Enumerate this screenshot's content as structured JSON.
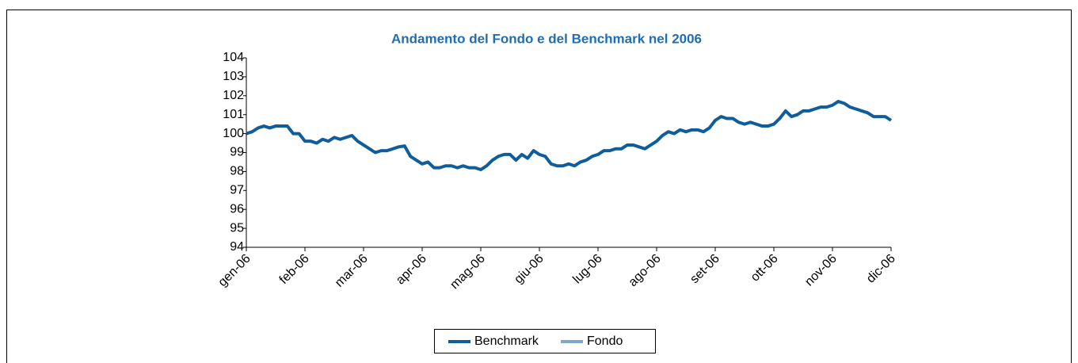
{
  "chart_data": {
    "type": "line",
    "title": "Andamento del Fondo e del Benchmark nel 2006",
    "x": [
      0,
      0.1,
      0.2,
      0.3,
      0.4,
      0.5,
      0.6,
      0.7,
      0.8,
      0.9,
      1,
      1.1,
      1.2,
      1.3,
      1.4,
      1.5,
      1.6,
      1.7,
      1.8,
      1.9,
      2,
      2.1,
      2.2,
      2.3,
      2.4,
      2.5,
      2.6,
      2.7,
      2.8,
      2.9,
      3,
      3.1,
      3.2,
      3.3,
      3.4,
      3.5,
      3.6,
      3.7,
      3.8,
      3.9,
      4,
      4.1,
      4.2,
      4.3,
      4.4,
      4.5,
      4.6,
      4.7,
      4.8,
      4.9,
      5,
      5.1,
      5.2,
      5.3,
      5.4,
      5.5,
      5.6,
      5.7,
      5.8,
      5.9,
      6,
      6.1,
      6.2,
      6.3,
      6.4,
      6.5,
      6.6,
      6.7,
      6.8,
      6.9,
      7,
      7.1,
      7.2,
      7.3,
      7.4,
      7.5,
      7.6,
      7.7,
      7.8,
      7.9,
      8,
      8.1,
      8.2,
      8.3,
      8.4,
      8.5,
      8.6,
      8.7,
      8.8,
      8.9,
      9,
      9.1,
      9.2,
      9.3,
      9.4,
      9.5,
      9.6,
      9.7,
      9.8,
      9.9,
      10,
      10.1,
      10.2,
      10.3,
      10.4,
      10.5,
      10.6,
      10.7,
      10.8,
      10.9,
      11
    ],
    "series": [
      {
        "name": "Benchmark",
        "color": "#0f5d9a",
        "values": [
          100.0,
          100.1,
          100.3,
          100.4,
          100.3,
          100.4,
          100.4,
          100.4,
          100.0,
          100.0,
          99.6,
          99.6,
          99.5,
          99.7,
          99.6,
          99.8,
          99.7,
          99.8,
          99.9,
          99.6,
          99.4,
          99.2,
          99.0,
          99.1,
          99.1,
          99.2,
          99.3,
          99.35,
          98.8,
          98.6,
          98.4,
          98.5,
          98.2,
          98.2,
          98.3,
          98.3,
          98.2,
          98.3,
          98.2,
          98.2,
          98.1,
          98.3,
          98.6,
          98.8,
          98.9,
          98.9,
          98.6,
          98.9,
          98.7,
          99.1,
          98.9,
          98.8,
          98.4,
          98.3,
          98.3,
          98.4,
          98.3,
          98.5,
          98.6,
          98.8,
          98.9,
          99.1,
          99.1,
          99.2,
          99.2,
          99.4,
          99.4,
          99.3,
          99.2,
          99.4,
          99.6,
          99.9,
          100.1,
          100.0,
          100.2,
          100.1,
          100.2,
          100.2,
          100.1,
          100.3,
          100.7,
          100.9,
          100.8,
          100.8,
          100.6,
          100.5,
          100.6,
          100.5,
          100.4,
          100.4,
          100.5,
          100.8,
          101.2,
          100.9,
          101.0,
          101.2,
          101.2,
          101.3,
          101.4,
          101.4,
          101.5,
          101.7,
          101.6,
          101.4,
          101.3,
          101.2,
          101.1,
          100.9,
          100.9,
          100.9,
          100.7
        ]
      },
      {
        "name": "Fondo",
        "color": "#7fa7d0",
        "values": [
          null,
          null,
          null,
          null,
          null,
          null,
          null,
          null,
          null,
          null,
          null,
          null,
          null,
          null,
          null,
          null,
          null,
          null,
          null,
          null,
          null,
          null,
          null,
          null,
          null,
          null,
          null,
          null,
          null,
          null,
          null,
          null,
          null,
          null,
          null,
          null,
          null,
          null,
          null,
          null,
          null,
          null,
          null,
          null,
          null,
          null,
          null,
          null,
          null,
          null,
          null,
          null,
          null,
          null,
          null,
          null,
          null,
          null,
          null,
          null,
          null,
          null,
          null,
          null,
          null,
          null,
          null,
          null,
          null,
          null,
          null,
          null,
          null,
          null,
          null,
          null,
          null,
          null,
          null,
          null,
          null,
          null,
          null,
          null,
          null,
          null,
          null,
          null,
          null,
          null,
          null,
          null,
          null,
          null,
          null,
          null,
          null,
          null,
          null,
          null,
          null,
          null,
          null,
          null,
          null,
          null,
          null,
          null,
          null,
          null,
          null
        ]
      }
    ],
    "xlim": [
      0,
      11
    ],
    "xticks": [
      {
        "value": 0,
        "label": "gen-06"
      },
      {
        "value": 1,
        "label": "feb-06"
      },
      {
        "value": 2,
        "label": "mar-06"
      },
      {
        "value": 3,
        "label": "apr-06"
      },
      {
        "value": 4,
        "label": "mag-06"
      },
      {
        "value": 5,
        "label": "giu-06"
      },
      {
        "value": 6,
        "label": "lug-06"
      },
      {
        "value": 7,
        "label": "ago-06"
      },
      {
        "value": 8,
        "label": "set-06"
      },
      {
        "value": 9,
        "label": "ott-06"
      },
      {
        "value": 10,
        "label": "nov-06"
      },
      {
        "value": 11,
        "label": "dic-06"
      }
    ],
    "ylim": [
      94,
      104
    ],
    "yticks": [
      94,
      95,
      96,
      97,
      98,
      99,
      100,
      101,
      102,
      103,
      104
    ],
    "legend": "bottom"
  }
}
